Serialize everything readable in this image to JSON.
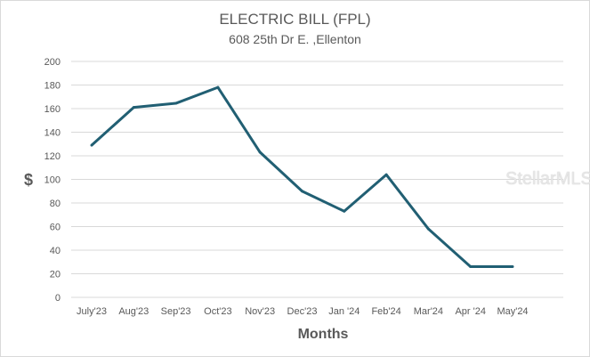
{
  "chart_data": {
    "type": "line",
    "title": "ELECTRIC BILL (FPL)",
    "subtitle": "608 25th Dr E. ,Ellenton",
    "xlabel": "Months",
    "ylabel": "$",
    "ylim": [
      0,
      200
    ],
    "yticks": [
      0,
      20,
      40,
      60,
      80,
      100,
      120,
      140,
      160,
      180,
      200
    ],
    "grid": true,
    "categories": [
      "July'23",
      "Aug'23",
      "Sep'23",
      "Oct'23",
      "Nov'23",
      "Dec'23",
      "Jan '24",
      "Feb'24",
      "Mar'24",
      "Apr '24",
      "May'24"
    ],
    "series": [
      {
        "name": "Electric Bill",
        "color": "#215f73",
        "values": [
          129,
          161,
          164.5,
          178,
          123,
          90,
          73,
          104,
          58,
          26,
          26
        ]
      }
    ]
  },
  "watermark": "StellarMLS"
}
